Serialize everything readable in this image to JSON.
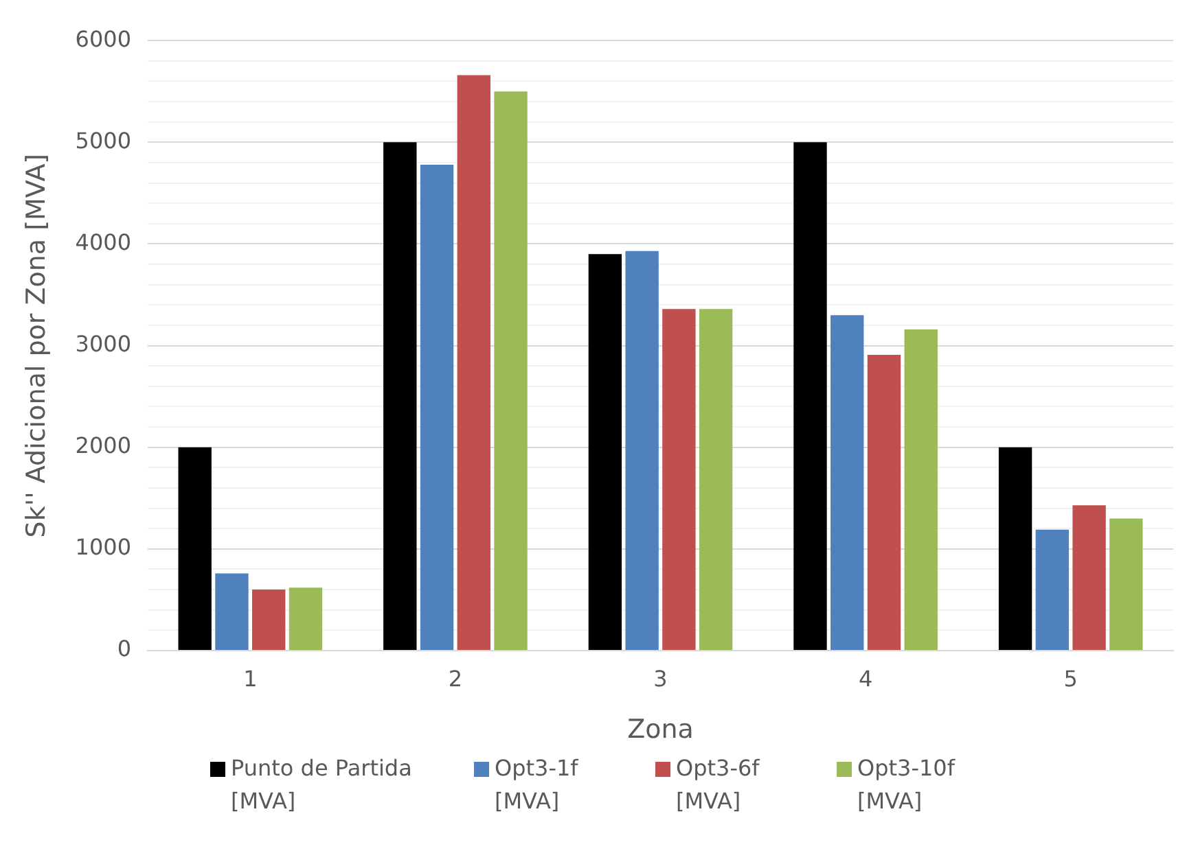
{
  "chart_data": {
    "type": "bar",
    "xlabel": "Zona",
    "ylabel": "Sk'' Adicional por Zona [MVA]",
    "categories": [
      "1",
      "2",
      "3",
      "4",
      "5"
    ],
    "series": [
      {
        "name": "Punto de Partida [MVA]",
        "color": "#000000",
        "values": [
          2000,
          5000,
          3900,
          5000,
          2000
        ]
      },
      {
        "name": "Opt3-1f [MVA]",
        "color": "#4f81bd",
        "values": [
          760,
          4780,
          3930,
          3300,
          1190
        ]
      },
      {
        "name": "Opt3-6f [MVA]",
        "color": "#c0504d",
        "values": [
          600,
          5660,
          3360,
          2910,
          1430
        ]
      },
      {
        "name": "Opt3-10f [MVA]",
        "color": "#9bbb59",
        "values": [
          620,
          5500,
          3360,
          3160,
          1300
        ]
      }
    ],
    "ylim": [
      0,
      6000
    ],
    "yticks": [
      0,
      {
        "value": 200,
        "label": null
      },
      {
        "value": 400,
        "label": null
      },
      {
        "value": 600,
        "label": null
      },
      {
        "value": 800,
        "label": null
      },
      1000,
      {
        "value": 1200,
        "label": null
      },
      {
        "value": 1400,
        "label": null
      },
      {
        "value": 1600,
        "label": null
      },
      {
        "value": 1800,
        "label": null
      },
      2000,
      {
        "value": 2200,
        "label": null
      },
      {
        "value": 2400,
        "label": null
      },
      {
        "value": 2600,
        "label": null
      },
      {
        "value": 2800,
        "label": null
      },
      3000,
      {
        "value": 3200,
        "label": null
      },
      {
        "value": 3400,
        "label": null
      },
      {
        "value": 3600,
        "label": null
      },
      {
        "value": 3800,
        "label": null
      },
      4000,
      {
        "value": 4200,
        "label": null
      },
      {
        "value": 4400,
        "label": null
      },
      {
        "value": 4600,
        "label": null
      },
      {
        "value": 4800,
        "label": null
      },
      5000,
      {
        "value": 5200,
        "label": null
      },
      {
        "value": 5400,
        "label": null
      },
      {
        "value": 5600,
        "label": null
      },
      {
        "value": 5800,
        "label": null
      },
      6000
    ],
    "grid": "y",
    "legend": "bottom"
  }
}
